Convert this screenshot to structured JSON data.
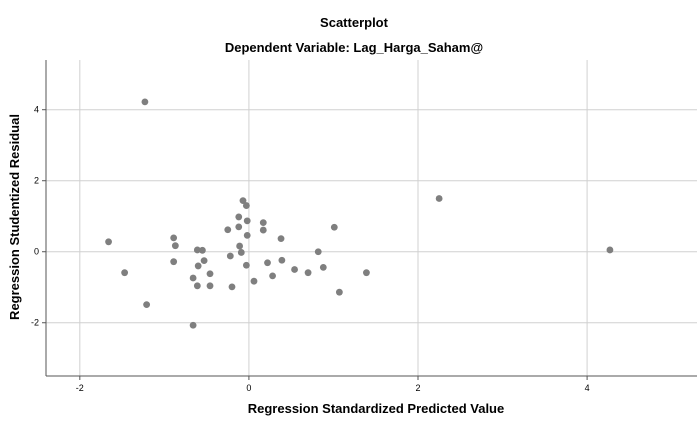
{
  "chart_data": {
    "type": "scatter",
    "title": "Scatterplot",
    "subtitle": "Dependent Variable: Lag_Harga_Saham@",
    "xlabel": "Regression Standardized Predicted Value",
    "ylabel": "Regression Studentized Residual",
    "xlim": [
      -2.4,
      5.3
    ],
    "ylim": [
      -3.5,
      5.4
    ],
    "xticks": [
      -2,
      0,
      2,
      4
    ],
    "yticks": [
      -2,
      0,
      2,
      4
    ],
    "xtick_labels": [
      "-2",
      "0",
      "2",
      "4"
    ],
    "ytick_labels": [
      "-2",
      "0",
      "2",
      "4"
    ],
    "grid": true,
    "point_color": "#7f7f7f",
    "points": [
      {
        "x": -1.23,
        "y": 4.22
      },
      {
        "x": -1.66,
        "y": 0.28
      },
      {
        "x": -1.47,
        "y": -0.59
      },
      {
        "x": -1.21,
        "y": -1.49
      },
      {
        "x": -0.89,
        "y": 0.39
      },
      {
        "x": -0.87,
        "y": 0.17
      },
      {
        "x": -0.89,
        "y": -0.28
      },
      {
        "x": -0.61,
        "y": 0.05
      },
      {
        "x": -0.55,
        "y": 0.04
      },
      {
        "x": -0.6,
        "y": -0.4
      },
      {
        "x": -0.53,
        "y": -0.25
      },
      {
        "x": -0.66,
        "y": -0.74
      },
      {
        "x": -0.61,
        "y": -0.96
      },
      {
        "x": -0.46,
        "y": -0.62
      },
      {
        "x": -0.46,
        "y": -0.96
      },
      {
        "x": -0.66,
        "y": -2.07
      },
      {
        "x": -0.25,
        "y": 0.62
      },
      {
        "x": -0.22,
        "y": -0.12
      },
      {
        "x": -0.2,
        "y": -0.99
      },
      {
        "x": -0.12,
        "y": 0.98
      },
      {
        "x": -0.12,
        "y": 0.7
      },
      {
        "x": -0.11,
        "y": 0.16
      },
      {
        "x": -0.09,
        "y": -0.02
      },
      {
        "x": -0.07,
        "y": 1.44
      },
      {
        "x": -0.03,
        "y": 1.3
      },
      {
        "x": -0.02,
        "y": 0.87
      },
      {
        "x": -0.02,
        "y": 0.46
      },
      {
        "x": -0.03,
        "y": -0.38
      },
      {
        "x": 0.06,
        "y": -0.83
      },
      {
        "x": 0.17,
        "y": 0.82
      },
      {
        "x": 0.17,
        "y": 0.61
      },
      {
        "x": 0.22,
        "y": -0.31
      },
      {
        "x": 0.28,
        "y": -0.68
      },
      {
        "x": 0.38,
        "y": 0.37
      },
      {
        "x": 0.39,
        "y": -0.24
      },
      {
        "x": 0.54,
        "y": -0.5
      },
      {
        "x": 0.7,
        "y": -0.59
      },
      {
        "x": 0.82,
        "y": 0.0
      },
      {
        "x": 0.88,
        "y": -0.44
      },
      {
        "x": 1.01,
        "y": 0.69
      },
      {
        "x": 1.07,
        "y": -1.14
      },
      {
        "x": 1.39,
        "y": -0.59
      },
      {
        "x": 2.25,
        "y": 1.5
      },
      {
        "x": 4.27,
        "y": 0.05
      }
    ]
  }
}
